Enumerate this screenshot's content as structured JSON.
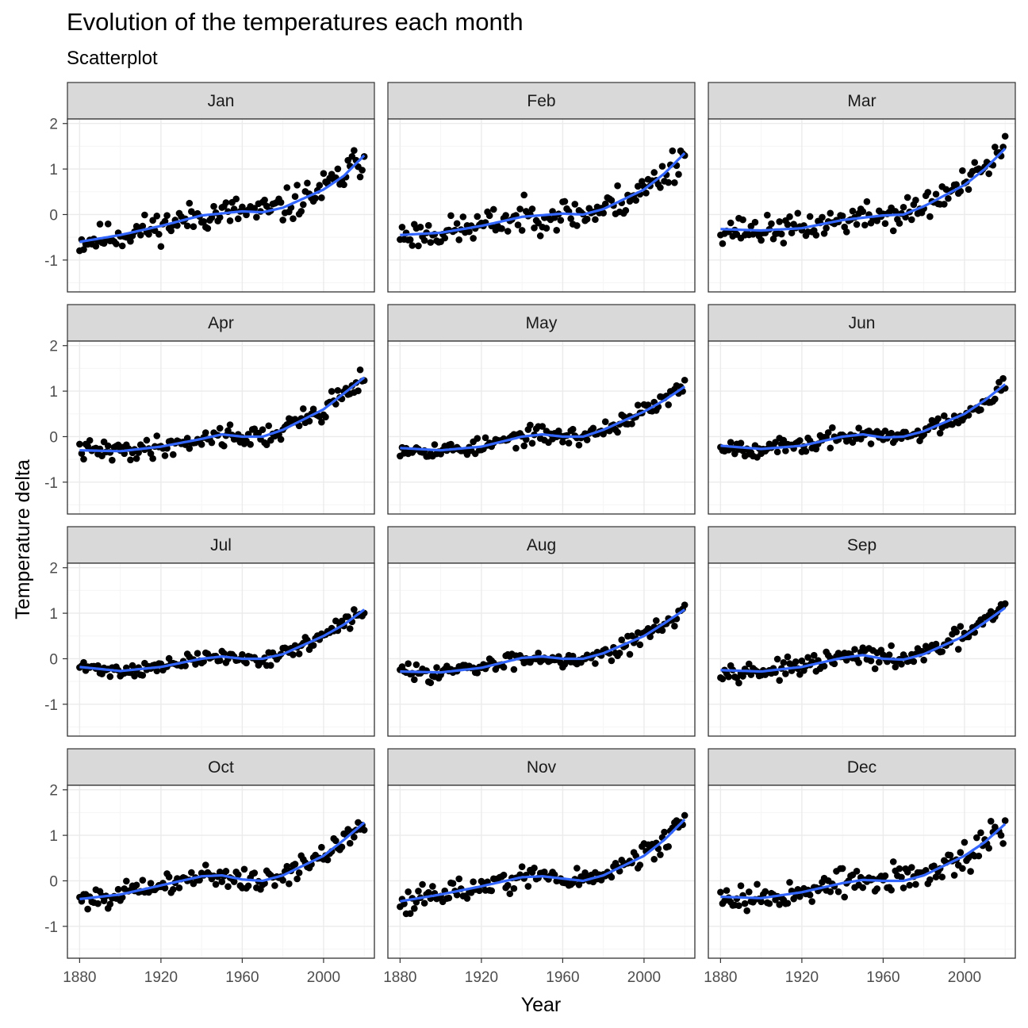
{
  "title": "Evolution of the temperatures each month",
  "subtitle": "Scatterplot",
  "colors": {
    "points": "#000000",
    "smooth": "#3366FF",
    "strip_fill": "#D9D9D9",
    "panel_border": "#333333",
    "grid_major": "#EBEBEB",
    "grid_minor": "#F5F5F5",
    "tick_text": "#4D4D4D"
  },
  "chart_data": {
    "type": "scatter",
    "facet_layout": {
      "rows": 4,
      "cols": 3
    },
    "xlabel": "Year",
    "ylabel": "Temperature delta",
    "xlim": [
      1874,
      2025
    ],
    "ylim": [
      -1.7,
      2.1
    ],
    "x_ticks": [
      1880,
      1920,
      1960,
      2000
    ],
    "y_ticks": [
      -1,
      0,
      1,
      2
    ],
    "grid": true,
    "trend": "loess smooth",
    "years": [
      1880,
      2020
    ],
    "panels": [
      {
        "label": "Jan",
        "noise": 0.22,
        "seed": 11,
        "smooth": [
          [
            1880,
            -0.6
          ],
          [
            1900,
            -0.45
          ],
          [
            1920,
            -0.25
          ],
          [
            1940,
            -0.02
          ],
          [
            1960,
            0.07
          ],
          [
            1970,
            0.05
          ],
          [
            1980,
            0.15
          ],
          [
            2000,
            0.55
          ],
          [
            2010,
            0.85
          ],
          [
            2020,
            1.3
          ]
        ]
      },
      {
        "label": "Feb",
        "noise": 0.22,
        "seed": 23,
        "smooth": [
          [
            1880,
            -0.45
          ],
          [
            1900,
            -0.4
          ],
          [
            1920,
            -0.25
          ],
          [
            1940,
            -0.05
          ],
          [
            1960,
            0.02
          ],
          [
            1970,
            0.0
          ],
          [
            1980,
            0.12
          ],
          [
            2000,
            0.55
          ],
          [
            2010,
            0.9
          ],
          [
            2020,
            1.35
          ]
        ]
      },
      {
        "label": "Mar",
        "noise": 0.2,
        "seed": 37,
        "smooth": [
          [
            1880,
            -0.32
          ],
          [
            1900,
            -0.35
          ],
          [
            1920,
            -0.3
          ],
          [
            1940,
            -0.12
          ],
          [
            1960,
            -0.02
          ],
          [
            1970,
            0.0
          ],
          [
            1980,
            0.18
          ],
          [
            2000,
            0.65
          ],
          [
            2010,
            1.0
          ],
          [
            2020,
            1.45
          ]
        ]
      },
      {
        "label": "Apr",
        "noise": 0.15,
        "seed": 41,
        "smooth": [
          [
            1880,
            -0.3
          ],
          [
            1900,
            -0.32
          ],
          [
            1920,
            -0.22
          ],
          [
            1940,
            -0.05
          ],
          [
            1950,
            0.05
          ],
          [
            1960,
            0.0
          ],
          [
            1970,
            0.0
          ],
          [
            1980,
            0.15
          ],
          [
            2000,
            0.6
          ],
          [
            2010,
            0.95
          ],
          [
            2020,
            1.3
          ]
        ]
      },
      {
        "label": "May",
        "noise": 0.12,
        "seed": 53,
        "smooth": [
          [
            1880,
            -0.25
          ],
          [
            1900,
            -0.3
          ],
          [
            1920,
            -0.22
          ],
          [
            1940,
            0.0
          ],
          [
            1950,
            0.05
          ],
          [
            1960,
            0.0
          ],
          [
            1970,
            0.0
          ],
          [
            1980,
            0.15
          ],
          [
            2000,
            0.55
          ],
          [
            2010,
            0.8
          ],
          [
            2020,
            1.1
          ]
        ]
      },
      {
        "label": "Jun",
        "noise": 0.12,
        "seed": 67,
        "smooth": [
          [
            1880,
            -0.2
          ],
          [
            1900,
            -0.27
          ],
          [
            1920,
            -0.2
          ],
          [
            1940,
            0.0
          ],
          [
            1950,
            0.05
          ],
          [
            1960,
            -0.02
          ],
          [
            1970,
            0.0
          ],
          [
            1980,
            0.12
          ],
          [
            2000,
            0.5
          ],
          [
            2010,
            0.8
          ],
          [
            2020,
            1.15
          ]
        ]
      },
      {
        "label": "Jul",
        "noise": 0.1,
        "seed": 71,
        "smooth": [
          [
            1880,
            -0.18
          ],
          [
            1900,
            -0.27
          ],
          [
            1920,
            -0.18
          ],
          [
            1940,
            0.0
          ],
          [
            1950,
            0.05
          ],
          [
            1960,
            0.0
          ],
          [
            1970,
            0.0
          ],
          [
            1980,
            0.1
          ],
          [
            2000,
            0.5
          ],
          [
            2010,
            0.75
          ],
          [
            2020,
            1.08
          ]
        ]
      },
      {
        "label": "Aug",
        "noise": 0.12,
        "seed": 83,
        "smooth": [
          [
            1880,
            -0.28
          ],
          [
            1900,
            -0.3
          ],
          [
            1920,
            -0.2
          ],
          [
            1940,
            0.02
          ],
          [
            1950,
            0.05
          ],
          [
            1960,
            0.0
          ],
          [
            1970,
            0.0
          ],
          [
            1980,
            0.12
          ],
          [
            2000,
            0.5
          ],
          [
            2010,
            0.78
          ],
          [
            2020,
            1.08
          ]
        ]
      },
      {
        "label": "Sep",
        "noise": 0.13,
        "seed": 97,
        "smooth": [
          [
            1880,
            -0.25
          ],
          [
            1900,
            -0.28
          ],
          [
            1920,
            -0.18
          ],
          [
            1940,
            0.02
          ],
          [
            1950,
            0.08
          ],
          [
            1960,
            0.0
          ],
          [
            1970,
            -0.02
          ],
          [
            1980,
            0.1
          ],
          [
            2000,
            0.5
          ],
          [
            2010,
            0.8
          ],
          [
            2020,
            1.12
          ]
        ]
      },
      {
        "label": "Oct",
        "noise": 0.15,
        "seed": 101,
        "smooth": [
          [
            1880,
            -0.4
          ],
          [
            1900,
            -0.3
          ],
          [
            1920,
            -0.1
          ],
          [
            1940,
            0.1
          ],
          [
            1950,
            0.12
          ],
          [
            1960,
            0.03
          ],
          [
            1970,
            0.0
          ],
          [
            1980,
            0.12
          ],
          [
            2000,
            0.55
          ],
          [
            2010,
            0.9
          ],
          [
            2020,
            1.28
          ]
        ]
      },
      {
        "label": "Nov",
        "noise": 0.17,
        "seed": 113,
        "smooth": [
          [
            1880,
            -0.45
          ],
          [
            1900,
            -0.3
          ],
          [
            1920,
            -0.12
          ],
          [
            1940,
            0.08
          ],
          [
            1950,
            0.1
          ],
          [
            1960,
            0.05
          ],
          [
            1970,
            0.0
          ],
          [
            1980,
            0.12
          ],
          [
            2000,
            0.55
          ],
          [
            2010,
            0.9
          ],
          [
            2020,
            1.35
          ]
        ]
      },
      {
        "label": "Dec",
        "noise": 0.2,
        "seed": 127,
        "smooth": [
          [
            1880,
            -0.35
          ],
          [
            1900,
            -0.38
          ],
          [
            1920,
            -0.25
          ],
          [
            1940,
            -0.05
          ],
          [
            1950,
            0.02
          ],
          [
            1960,
            0.0
          ],
          [
            1970,
            0.0
          ],
          [
            1980,
            0.12
          ],
          [
            2000,
            0.55
          ],
          [
            2010,
            0.85
          ],
          [
            2020,
            1.25
          ]
        ]
      }
    ]
  }
}
